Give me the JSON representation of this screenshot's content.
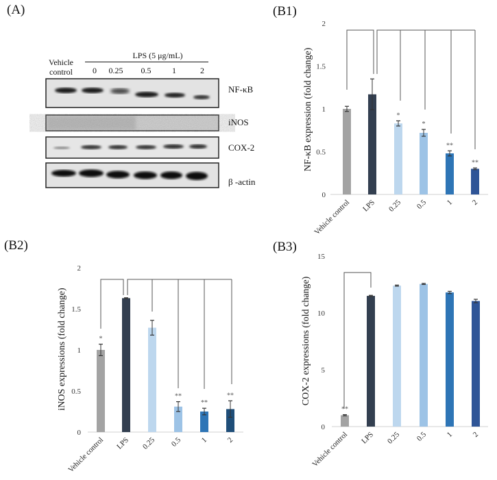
{
  "panels": {
    "A": "(A)",
    "B1": "(B1)",
    "B2": "(B2)",
    "B3": "(B3)"
  },
  "blot": {
    "treatment_header": "LPS (5 μg/mL)",
    "vehicle_line1": "Vehicle",
    "vehicle_line2": "control",
    "lanes": [
      "0",
      "0.25",
      "0.5",
      "1",
      "2"
    ],
    "rows": [
      "NF-κB",
      "iNOS",
      "COX-2",
      "β -actin"
    ]
  },
  "colors": {
    "vehicle": "#a3a3a3",
    "lps": "#333f50",
    "c025": "#bdd7ee",
    "c05": "#9dc3e6",
    "c1": "#2e75b6",
    "c2": "#2f5597",
    "c2_b2": "#1f4e79",
    "axis": "#d9d9d9",
    "bracket": "#555555"
  },
  "chart_data": [
    {
      "id": "B1",
      "type": "bar",
      "title": "",
      "categories": [
        "Vehicle control",
        "LPS",
        "0.25",
        "0.5",
        "1",
        "2"
      ],
      "values": [
        1.0,
        1.17,
        0.83,
        0.72,
        0.48,
        0.3
      ],
      "errors": [
        0.03,
        0.18,
        0.03,
        0.04,
        0.03,
        0.01
      ],
      "significance": [
        "",
        "",
        "*",
        "*",
        "**",
        "**"
      ],
      "xlabel": "",
      "ylabel": "NF-κB expression (fold change)",
      "ylim": [
        0,
        2
      ],
      "yticks": [
        "0",
        "0.5",
        "1",
        "1.5",
        "2"
      ],
      "grid": false,
      "brackets": "LPS compared to Vehicle control, 0.25, 0.5, 1, 2"
    },
    {
      "id": "B2",
      "type": "bar",
      "title": "",
      "categories": [
        "Vehicle control",
        "LPS",
        "0.25",
        "0.5",
        "1",
        "2"
      ],
      "values": [
        1.0,
        1.63,
        1.27,
        0.31,
        0.25,
        0.28
      ],
      "errors": [
        0.07,
        0.005,
        0.09,
        0.06,
        0.04,
        0.1
      ],
      "significance": [
        "*",
        "",
        "",
        "**",
        "**",
        "**"
      ],
      "xlabel": "",
      "ylabel": "iNOS expressions (fold change)",
      "ylim": [
        0,
        2
      ],
      "yticks": [
        "0",
        "0.5",
        "1",
        "1.5",
        "2"
      ],
      "grid": false,
      "brackets": "LPS compared to Vehicle control, 0.25, 0.5, 1, 2"
    },
    {
      "id": "B3",
      "type": "bar",
      "title": "",
      "categories": [
        "Vehicle control",
        "LPS",
        "0.25",
        "0.5",
        "1",
        "2"
      ],
      "values": [
        1.0,
        11.5,
        12.4,
        12.55,
        11.8,
        11.05
      ],
      "errors": [
        0.05,
        0.05,
        0.05,
        0.05,
        0.1,
        0.15
      ],
      "significance": [
        "**",
        "",
        "",
        "",
        "",
        ""
      ],
      "xlabel": "",
      "ylabel": "COX-2 expressions (fold change)",
      "ylim": [
        0,
        15
      ],
      "yticks": [
        "0",
        "5",
        "10",
        "15"
      ],
      "grid": false,
      "brackets": "LPS compared to Vehicle control"
    }
  ]
}
